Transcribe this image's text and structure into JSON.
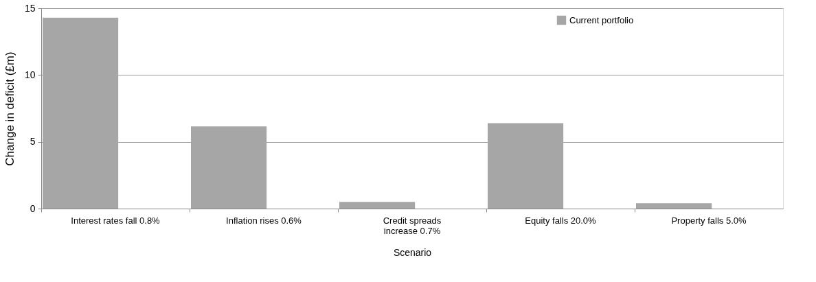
{
  "chart_data": {
    "type": "bar",
    "xlabel": "Scenario",
    "ylabel": "Change in deficit (£m)",
    "categories": [
      "Interest rates fall 0.8%",
      "Inflation rises 0.6%",
      "Credit spreads\nincrease 0.7%",
      "Equity falls 20.0%",
      "Property falls 5.0%"
    ],
    "series": [
      {
        "name": "Current portfolio",
        "color": "#a6a6a6",
        "values": [
          14.3,
          6.15,
          0.5,
          6.4,
          0.4
        ]
      }
    ],
    "ylim": [
      0,
      15
    ],
    "yticks": [
      0,
      5,
      10,
      15
    ],
    "grid": "y",
    "legend": "top right"
  }
}
